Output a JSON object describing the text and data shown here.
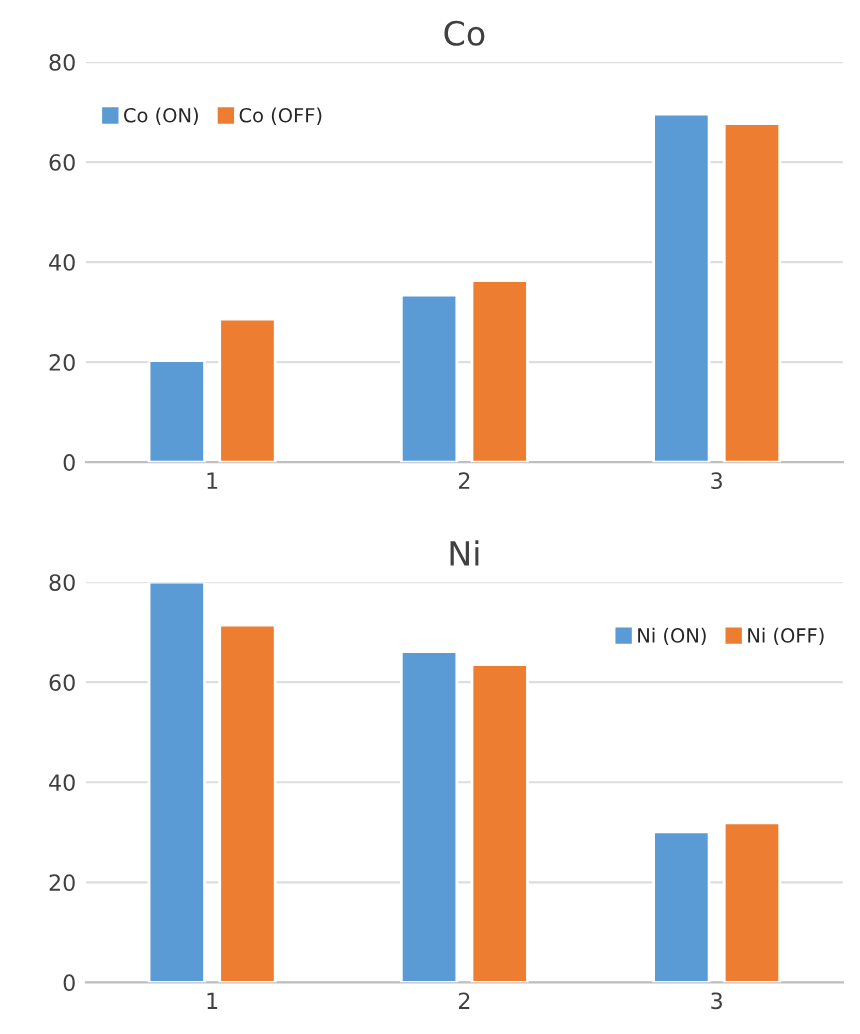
{
  "chart_data": [
    {
      "type": "bar",
      "title": "Co",
      "categories": [
        "1",
        "2",
        "3"
      ],
      "ylim": [
        0,
        80
      ],
      "yticks": [
        0,
        20,
        40,
        60,
        80
      ],
      "grid": "y",
      "legend": "top left",
      "series": [
        {
          "name": "Co (ON)",
          "color": "#5b9bd5",
          "values": [
            20.3,
            33.4,
            69.6
          ]
        },
        {
          "name": "Co (OFF)",
          "color": "#ed7d31",
          "values": [
            28.6,
            36.3,
            67.7
          ]
        }
      ]
    },
    {
      "type": "bar",
      "title": "Ni",
      "categories": [
        "1",
        "2",
        "3"
      ],
      "ylim": [
        0,
        80
      ],
      "yticks": [
        0,
        20,
        40,
        60,
        80
      ],
      "grid": "y",
      "legend": "top right",
      "series": [
        {
          "name": "Ni (ON)",
          "color": "#5b9bd5",
          "values": [
            80,
            66.1,
            30.1
          ]
        },
        {
          "name": "Ni (OFF)",
          "color": "#ed7d31",
          "values": [
            71.4,
            63.5,
            31.9
          ]
        }
      ]
    }
  ]
}
